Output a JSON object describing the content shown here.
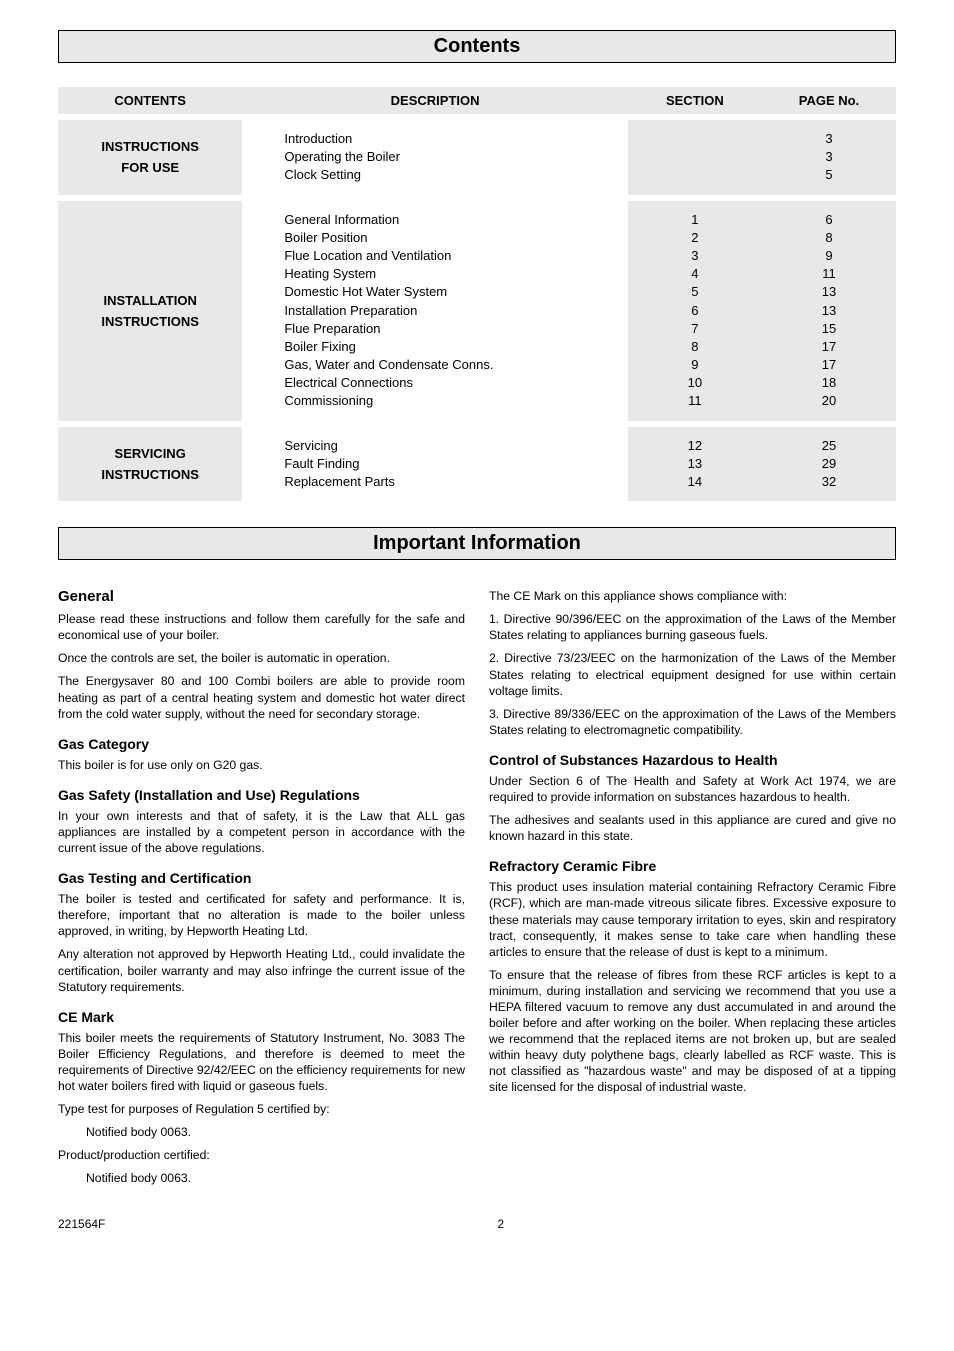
{
  "headers": {
    "contents": "Contents",
    "important": "Important Information"
  },
  "table": {
    "th": {
      "contents": "CONTENTS",
      "description": "DESCRIPTION",
      "section": "SECTION",
      "page": "PAGE No."
    },
    "groups": [
      {
        "category_line1": "INSTRUCTIONS",
        "category_line2": "FOR USE",
        "rows": [
          {
            "desc": "Introduction",
            "section": "",
            "page": "3"
          },
          {
            "desc": "Operating the Boiler",
            "section": "",
            "page": "3"
          },
          {
            "desc": "Clock Setting",
            "section": "",
            "page": "5"
          }
        ]
      },
      {
        "category_line1": "INSTALLATION",
        "category_line2": "INSTRUCTIONS",
        "rows": [
          {
            "desc": "General Information",
            "section": "1",
            "page": "6"
          },
          {
            "desc": "Boiler Position",
            "section": "2",
            "page": "8"
          },
          {
            "desc": "Flue Location and Ventilation",
            "section": "3",
            "page": "9"
          },
          {
            "desc": "Heating System",
            "section": "4",
            "page": "11"
          },
          {
            "desc": "Domestic Hot Water System",
            "section": "5",
            "page": "13"
          },
          {
            "desc": "Installation Preparation",
            "section": "6",
            "page": "13"
          },
          {
            "desc": "Flue Preparation",
            "section": "7",
            "page": "15"
          },
          {
            "desc": "Boiler Fixing",
            "section": "8",
            "page": "17"
          },
          {
            "desc": "Gas, Water and Condensate Conns.",
            "section": "9",
            "page": "17"
          },
          {
            "desc": "Electrical Connections",
            "section": "10",
            "page": "18"
          },
          {
            "desc": "Commissioning",
            "section": "11",
            "page": "20"
          }
        ]
      },
      {
        "category_line1": "SERVICING",
        "category_line2": "INSTRUCTIONS",
        "rows": [
          {
            "desc": "Servicing",
            "section": "12",
            "page": "25"
          },
          {
            "desc": "Fault Finding",
            "section": "13",
            "page": "29"
          },
          {
            "desc": "Replacement Parts",
            "section": "14",
            "page": "32"
          }
        ]
      }
    ]
  },
  "left": {
    "h_general": "General",
    "p1": "Please read these instructions and follow them carefully for the safe and economical use of your boiler.",
    "p2": "Once the controls are set, the boiler is automatic in operation.",
    "p3": "The Energysaver 80 and 100 Combi boilers are able to provide room heating as part of a central heating system and domestic hot water direct from the cold water supply, without the need for secondary storage.",
    "h_gascat": "Gas Category",
    "p4": "This boiler is for use only on G20 gas.",
    "h_gassafety": "Gas Safety (Installation and Use) Regulations",
    "p5": "In your own interests and that of safety, it is the Law that ALL gas appliances are installed by a competent person in accordance with the current issue of the above regulations.",
    "h_gastest": "Gas Testing and Certification",
    "p6": "The boiler is tested and certificated for safety and performance. It is, therefore, important that no alteration is made to the boiler unless approved, in writing, by Hepworth Heating Ltd.",
    "p7": "Any alteration not approved by Hepworth Heating Ltd., could invalidate the certification, boiler warranty and may also infringe the current issue of the Statutory requirements.",
    "h_ce": "CE Mark",
    "p8": "This boiler meets the requirements of Statutory Instrument, No. 3083 The Boiler Efficiency Regulations, and therefore is deemed to meet the requirements of Directive 92/42/EEC on the efficiency requirements for new hot water boilers fired with liquid or gaseous fuels.",
    "p9": "Type test for purposes of Regulation 5 certified by:",
    "p10": "Notified body 0063.",
    "p11": "Product/production certified:",
    "p12": "Notified body 0063."
  },
  "right": {
    "p1": "The CE Mark on this appliance shows compliance with:",
    "p2": "1.  Directive 90/396/EEC on the approximation of the Laws of the Member States relating to appliances burning gaseous fuels.",
    "p3": "2.  Directive 73/23/EEC on the harmonization of the Laws of the Member States relating to electrical equipment designed for use within certain voltage limits.",
    "p4": "3.  Directive 89/336/EEC on the approximation of the Laws of the Members States relating to electromagnetic compatibility.",
    "h_coshh": "Control of Substances Hazardous to Health",
    "p5": "Under Section 6 of The Health and Safety at Work Act 1974, we are required to provide information on substances hazardous to health.",
    "p6": "The adhesives and sealants used in this appliance are cured and give no known hazard in this state.",
    "h_rcf": "Refractory Ceramic Fibre",
    "p7": "This product uses insulation material containing Refractory Ceramic Fibre (RCF), which are man-made vitreous silicate fibres.  Excessive exposure to these materials may cause temporary irritation to eyes, skin and respiratory tract, consequently, it makes sense to take care when handling these articles to ensure that the release of dust is kept to a minimum.",
    "p8": "To ensure that the release of fibres from these RCF articles is kept to a minimum, during installation and servicing we recommend that you use a HEPA filtered vacuum to remove any dust accumulated in and around the boiler before and after working on the boiler.  When replacing these articles we recommend that the replaced items are not broken up, but are sealed within heavy duty polythene bags, clearly labelled as RCF waste.  This is not classified as \"hazardous waste\" and may be disposed of at a tipping site licensed for the disposal of industrial waste."
  },
  "footer": {
    "docnum": "221564F",
    "pagenum": "2"
  }
}
